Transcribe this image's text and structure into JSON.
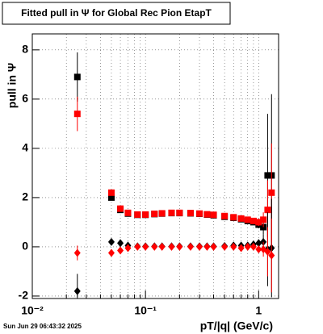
{
  "chart_data": {
    "type": "scatter",
    "title": "Fitted pull in  Ψ  for Global Rec Pion EtapT",
    "x_label": "pT/|q| (GeV/c)",
    "y_label": "pull in  Ψ",
    "timestamp": "Sun Jun 29 06:43:32 2025",
    "log_x": true,
    "grid": true,
    "x": [
      0.025,
      0.05,
      0.06,
      0.07,
      0.085,
      0.1,
      0.12,
      0.14,
      0.17,
      0.2,
      0.25,
      0.3,
      0.35,
      0.4,
      0.5,
      0.6,
      0.7,
      0.8,
      0.9,
      1.0,
      1.1,
      1.2,
      1.3
    ],
    "series": [
      {
        "marker": "square",
        "color": "#000000",
        "values": [
          6.9,
          2.0,
          1.5,
          1.35,
          1.3,
          1.3,
          1.33,
          1.35,
          1.37,
          1.37,
          1.36,
          1.34,
          1.31,
          1.28,
          1.22,
          1.18,
          1.12,
          1.05,
          1.0,
          0.9,
          0.8,
          2.9,
          2.9
        ],
        "errors": [
          1.0,
          0.05,
          0.04,
          0.03,
          0.03,
          0.03,
          0.03,
          0.03,
          0.03,
          0.03,
          0.03,
          0.03,
          0.03,
          0.03,
          0.04,
          0.05,
          0.06,
          0.08,
          0.1,
          0.15,
          0.3,
          2.5,
          3.3
        ]
      },
      {
        "marker": "square",
        "color": "#ff0000",
        "values": [
          5.4,
          2.2,
          1.55,
          1.38,
          1.31,
          1.31,
          1.34,
          1.36,
          1.38,
          1.38,
          1.37,
          1.35,
          1.32,
          1.3,
          1.25,
          1.2,
          1.15,
          1.1,
          1.05,
          1.0,
          1.1,
          1.5,
          2.2
        ],
        "errors": [
          0.7,
          0.05,
          0.04,
          0.03,
          0.03,
          0.03,
          0.03,
          0.03,
          0.03,
          0.03,
          0.03,
          0.03,
          0.03,
          0.03,
          0.04,
          0.05,
          0.06,
          0.08,
          0.1,
          0.15,
          0.3,
          1.2,
          2.0
        ]
      },
      {
        "marker": "diamond",
        "color": "#000000",
        "values": [
          -1.8,
          0.2,
          0.15,
          0.05,
          0.02,
          0.02,
          0.02,
          0.02,
          0.02,
          0.02,
          0.02,
          0.02,
          0.02,
          0.02,
          0.03,
          0.05,
          0.05,
          0.05,
          0.1,
          0.15,
          0.2,
          -0.1,
          -0.05
        ],
        "errors": [
          0.7,
          0.05,
          0.04,
          0.03,
          0.03,
          0.03,
          0.03,
          0.03,
          0.03,
          0.03,
          0.03,
          0.03,
          0.03,
          0.03,
          0.04,
          0.05,
          0.06,
          0.08,
          0.1,
          0.15,
          0.3,
          1.5,
          2.0
        ]
      },
      {
        "marker": "diamond",
        "color": "#ff0000",
        "values": [
          -0.25,
          -0.25,
          -0.15,
          -0.05,
          0.0,
          0.0,
          0.0,
          0.0,
          0.0,
          0.0,
          0.0,
          0.0,
          0.0,
          0.0,
          0.0,
          0.0,
          -0.05,
          0.0,
          0.0,
          -0.1,
          -0.1,
          -0.2,
          -0.35
        ],
        "errors": [
          0.3,
          0.05,
          0.04,
          0.03,
          0.03,
          0.03,
          0.03,
          0.03,
          0.03,
          0.03,
          0.03,
          0.03,
          0.03,
          0.03,
          0.04,
          0.05,
          0.06,
          0.08,
          0.1,
          0.15,
          0.3,
          1.0,
          1.5
        ]
      }
    ],
    "xlim": [
      0.01,
      1.5
    ],
    "xticks": [
      {
        "value": 0.01,
        "label": "10⁻²"
      },
      {
        "value": 0.1,
        "label": "10⁻¹"
      },
      1
    ],
    "xminorticks": [
      0.02,
      0.03,
      0.04,
      0.05,
      0.06,
      0.07,
      0.08,
      0.09,
      0.2,
      0.3,
      0.4,
      0.5,
      0.6,
      0.7,
      0.8,
      0.9
    ],
    "ylim": [
      -2.1,
      8.65
    ],
    "yticks": [
      -2,
      0,
      2,
      4,
      6,
      8
    ]
  }
}
